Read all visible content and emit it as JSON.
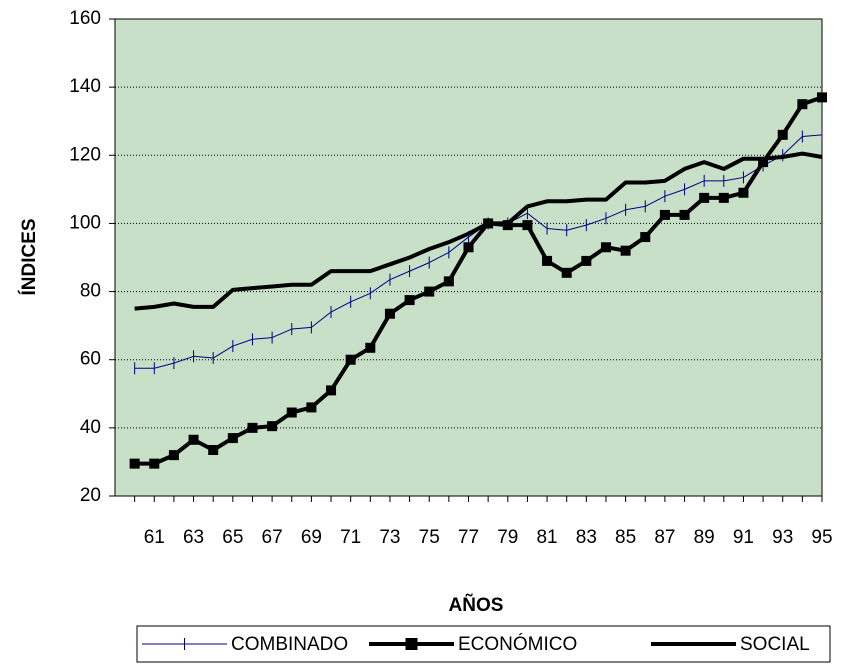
{
  "chart_data": {
    "type": "line",
    "x_label": "AÑOS",
    "y_label": "ÍNDICES",
    "categories": [
      null,
      "61",
      null,
      "63",
      null,
      "65",
      null,
      "67",
      null,
      "69",
      null,
      "71",
      null,
      "73",
      null,
      "75",
      null,
      "77",
      null,
      "79",
      null,
      "81",
      null,
      "83",
      null,
      "85",
      null,
      "87",
      null,
      "89",
      null,
      "91",
      null,
      "93",
      null,
      "95"
    ],
    "ylim": [
      20,
      160
    ],
    "yticks": [
      20,
      40,
      60,
      80,
      100,
      120,
      140,
      160
    ],
    "grid": true,
    "plot_background": "#c8dfc8",
    "legend": "bottom",
    "series": [
      {
        "name": "COMBINADO",
        "color": "#000080",
        "marker": "dash",
        "line_width": 1,
        "values": [
          57.5,
          57.5,
          59,
          61,
          60.5,
          64,
          66,
          66.5,
          69,
          69.5,
          74,
          77,
          79.5,
          83.5,
          86,
          88.5,
          91.5,
          96,
          100,
          100,
          103,
          98.5,
          98,
          99.5,
          101.5,
          104,
          105,
          108,
          110,
          112.5,
          112.5,
          113.5,
          117,
          120,
          125.5,
          126
        ]
      },
      {
        "name": "ECONÓMICO",
        "color": "#000000",
        "marker": "square",
        "line_width": 4,
        "values": [
          29.5,
          29.5,
          32,
          36.5,
          33.5,
          37,
          40,
          40.5,
          44.5,
          46,
          51,
          60,
          63.5,
          73.5,
          77.5,
          80,
          83,
          93,
          100,
          99.5,
          99.5,
          89,
          85.5,
          89,
          93,
          92,
          96,
          102.5,
          102.5,
          107.5,
          107.5,
          109,
          118,
          126,
          135,
          137
        ]
      },
      {
        "name": "SOCIAL",
        "color": "#000000",
        "marker": "none",
        "line_width": 4,
        "values": [
          75,
          75.5,
          76.5,
          75.5,
          75.5,
          80.5,
          81,
          81.5,
          82,
          82,
          86,
          86,
          86,
          88,
          90,
          92.5,
          94.5,
          97,
          100,
          100,
          105,
          106.5,
          106.5,
          107,
          107,
          112,
          112,
          112.5,
          116,
          118,
          116,
          119,
          119,
          119.5,
          120.5,
          119.5
        ]
      }
    ]
  }
}
